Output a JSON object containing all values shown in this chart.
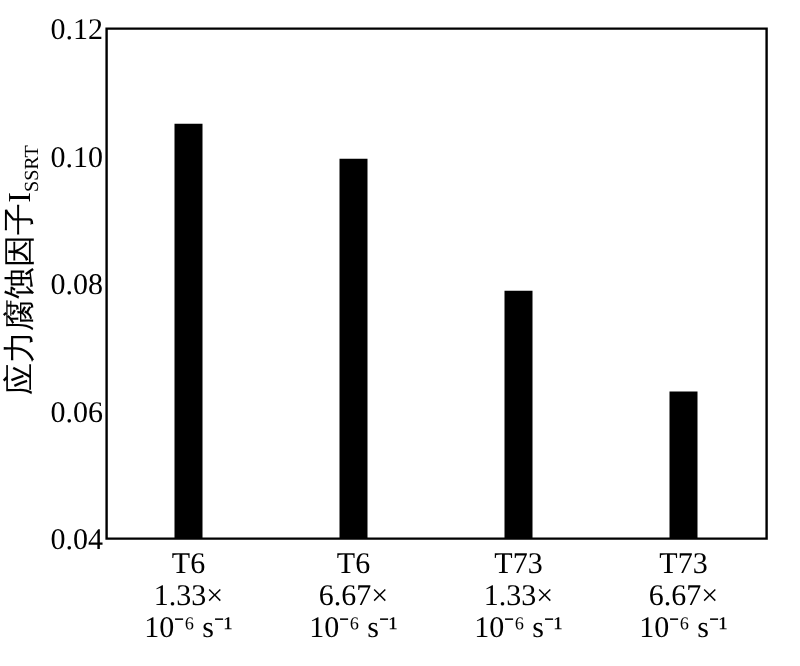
{
  "chart_data": {
    "type": "bar",
    "categories": [
      "T6\n1.33×\n10⁻⁶ s⁻¹",
      "T6\n6.67×\n10⁻⁶ s⁻¹",
      "T73\n1.33×\n10⁻⁶ s⁻¹",
      "T73\n6.67×\n10⁻⁶ s⁻¹"
    ],
    "values": [
      0.105,
      0.0995,
      0.0788,
      0.063
    ],
    "color": "#000000",
    "ylabel": "应力腐蚀因子I$_{SSRT}$",
    "ylim": [
      0.04,
      0.12
    ],
    "yticks": [
      0.04,
      0.06,
      0.08,
      {
        "value": 0.1,
        "label": "0.10"
      },
      0.12
    ],
    "grid": false
  }
}
